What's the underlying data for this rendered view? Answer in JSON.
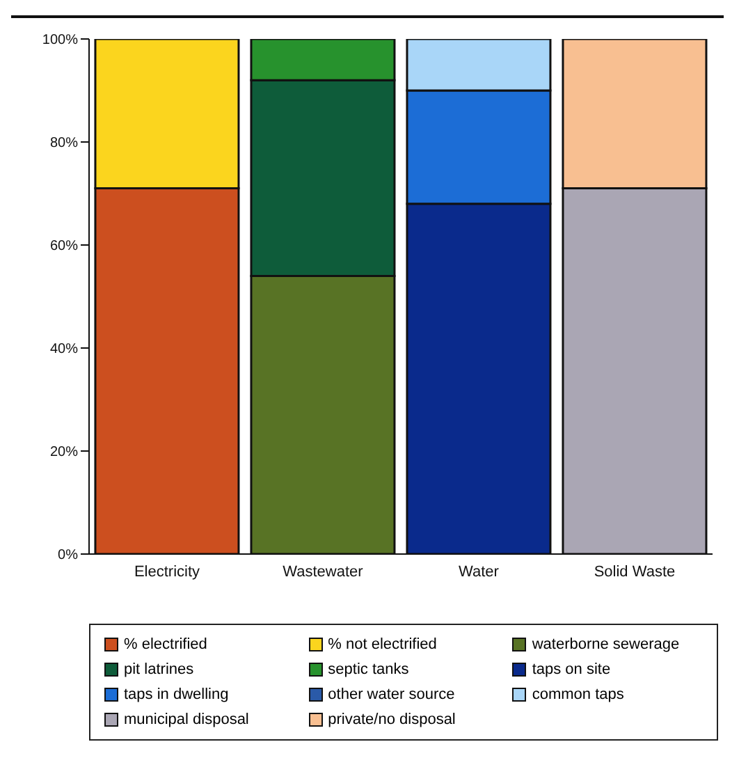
{
  "chart_data": {
    "type": "bar",
    "stacked": true,
    "categories": [
      "Electricity",
      "Wastewater",
      "Water",
      "Solid Waste"
    ],
    "series": [
      {
        "name": "% electrified",
        "color": "#cc4f1f",
        "values": [
          71,
          null,
          null,
          null
        ]
      },
      {
        "name": "% not electrified",
        "color": "#fbd51e",
        "values": [
          29,
          null,
          null,
          null
        ]
      },
      {
        "name": "waterborne sewerage",
        "color": "#587325",
        "values": [
          null,
          54,
          null,
          null
        ]
      },
      {
        "name": "pit latrines",
        "color": "#0e5c3a",
        "values": [
          null,
          38,
          null,
          null
        ]
      },
      {
        "name": "septic tanks",
        "color": "#27922d",
        "values": [
          null,
          8,
          null,
          null
        ]
      },
      {
        "name": "taps on site",
        "color": "#0a2a8c",
        "values": [
          null,
          null,
          68,
          null
        ]
      },
      {
        "name": "taps in dwelling",
        "color": "#1c6dd6",
        "values": [
          null,
          null,
          22,
          null
        ]
      },
      {
        "name": "other water source",
        "color": "#2a5aa8",
        "values": [
          null,
          null,
          null,
          null
        ]
      },
      {
        "name": "common taps",
        "color": "#a9d6f8",
        "values": [
          null,
          null,
          10,
          null
        ]
      },
      {
        "name": "municipal disposal",
        "color": "#aaa6b4",
        "values": [
          null,
          null,
          null,
          71
        ]
      },
      {
        "name": "private/no disposal",
        "color": "#f8bf91",
        "values": [
          null,
          null,
          null,
          29
        ]
      }
    ],
    "ylim": [
      0,
      100
    ],
    "yticks": [
      {
        "value": 0,
        "label": "0%"
      },
      {
        "value": 20,
        "label": "20%"
      },
      {
        "value": 40,
        "label": "40%"
      },
      {
        "value": 60,
        "label": "60%"
      },
      {
        "value": 80,
        "label": "80%"
      },
      {
        "value": 100,
        "label": "100%"
      }
    ],
    "grid": false,
    "legend": "bottom"
  }
}
